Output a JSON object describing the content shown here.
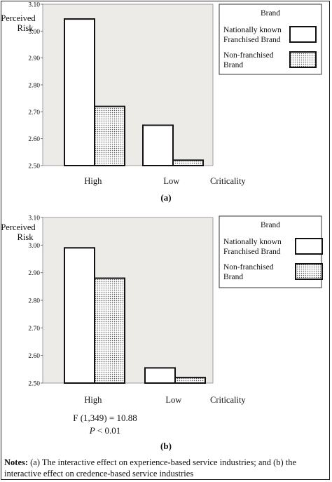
{
  "chart_data": [
    {
      "type": "bar",
      "caption": "(a)",
      "ylabel": "Perceived Risk",
      "xlabel": "Criticality",
      "categories": [
        "High",
        "Low"
      ],
      "ylim": [
        2.5,
        3.1
      ],
      "yticks": [
        "2.50",
        "2.60",
        "2.70",
        "2.80",
        "2.90",
        "3.00",
        "3.10"
      ],
      "legend": {
        "title": "Brand",
        "position": "top-right"
      },
      "series": [
        {
          "name": "Nationally known Franchised Brand",
          "pattern": "solid-white",
          "values": [
            3.045,
            2.65
          ]
        },
        {
          "name": "Non-franchised Brand",
          "pattern": "dotted",
          "values": [
            2.72,
            2.52
          ]
        }
      ]
    },
    {
      "type": "bar",
      "caption": "(b)",
      "ylabel": "Perceived Risk",
      "xlabel": "Criticality",
      "categories": [
        "High",
        "Low"
      ],
      "ylim": [
        2.5,
        3.1
      ],
      "yticks": [
        "2.50",
        "2.60",
        "2.70",
        "2.80",
        "2.90",
        "3.00",
        "3.10"
      ],
      "legend": {
        "title": "Brand",
        "position": "top-right"
      },
      "series": [
        {
          "name": "Nationally known Franchised Brand",
          "pattern": "solid-white",
          "values": [
            2.99,
            2.555
          ]
        },
        {
          "name": "Non-franchised Brand",
          "pattern": "dotted",
          "values": [
            2.88,
            2.52
          ]
        }
      ]
    }
  ],
  "stats": {
    "f_line": "F (1,349) = 10.88",
    "p_symbol": "P",
    "p_rest": " < 0.01"
  },
  "notes": {
    "label": "Notes:",
    "text": " (a) The interactive effect on experience-based service industries; and (b) the interactive effect on credence-based service industries"
  },
  "colors": {
    "plot_bg": "#ecebe8",
    "bar_fill": "#ffffff",
    "stroke": "#111111"
  }
}
